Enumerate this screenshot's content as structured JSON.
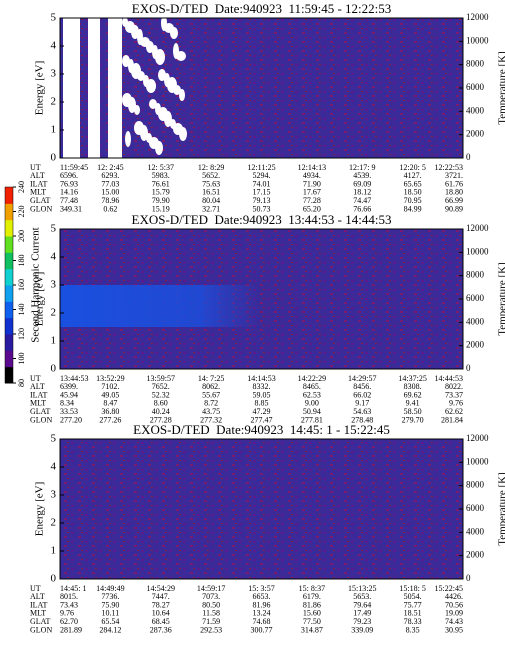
{
  "chart_data": [
    {
      "type": "spectrogram",
      "title": "EXOS-D/TED  Date:940923  11:59:45 - 12:22:53",
      "ylabel": "Energy [eV]",
      "y2label": "Temperature [K]",
      "ylim": [
        0,
        5
      ],
      "yticks": [
        0,
        1,
        2,
        3,
        4,
        5
      ],
      "y2lim": [
        0,
        12000
      ],
      "y2ticks": [
        0,
        2000,
        4000,
        6000,
        8000,
        10000,
        12000
      ],
      "table": [
        {
          "label": "UT",
          "values": [
            "11:59:45",
            "12: 2:45",
            "12: 5:37",
            "12: 8:29",
            "12:11:25",
            "12:14:13",
            "12:17: 9",
            "12:20: 5",
            "12:22:53"
          ]
        },
        {
          "label": "ALT",
          "values": [
            "6596.",
            "6293.",
            "5983.",
            "5652.",
            "5294.",
            "4934.",
            "4539.",
            "4127.",
            "3721."
          ]
        },
        {
          "label": "ILAT",
          "values": [
            "76.93",
            "77.03",
            "76.61",
            "75.63",
            "74.01",
            "71.90",
            "69.09",
            "65.65",
            "61.76"
          ]
        },
        {
          "label": "MLT",
          "values": [
            "14.16",
            "15.00",
            "15.79",
            "16.51",
            "17.15",
            "17.67",
            "18.12",
            "18.50",
            "18.80"
          ]
        },
        {
          "label": "GLAT",
          "values": [
            "77.48",
            "78.96",
            "79.90",
            "80.04",
            "79.13",
            "77.28",
            "74.47",
            "70.95",
            "66.99"
          ]
        },
        {
          "label": "GLON",
          "values": [
            "349.31",
            "0.62",
            "15.19",
            "32.71",
            "50.73",
            "65.20",
            "76.66",
            "84.99",
            "90.89"
          ]
        }
      ]
    },
    {
      "type": "spectrogram",
      "title": "EXOS-D/TED  Date:940923  13:44:53 - 14:44:53",
      "ylabel": "Energy [eV]",
      "y2label": "Temperature [K]",
      "ylim": [
        0,
        5
      ],
      "yticks": [
        0,
        1,
        2,
        3,
        4,
        5
      ],
      "y2lim": [
        0,
        12000
      ],
      "y2ticks": [
        0,
        2000,
        4000,
        6000,
        8000,
        10000,
        12000
      ],
      "colorbar": {
        "label": "Second Harmonic Current",
        "lim": [
          80,
          240
        ],
        "ticks": [
          80,
          100,
          120,
          140,
          160,
          180,
          200,
          220,
          240
        ],
        "colors": [
          "#000000",
          "#5a0a8c",
          "#2a1aa0",
          "#1030d0",
          "#1060f0",
          "#10a0f0",
          "#10d0d0",
          "#10c060",
          "#60e020",
          "#e0f000",
          "#f0a000",
          "#f02000"
        ]
      },
      "table": [
        {
          "label": "UT",
          "values": [
            "13:44:53",
            "13:52:29",
            "13:59:57",
            "14: 7:25",
            "14:14:53",
            "14:22:29",
            "14:29:57",
            "14:37:25",
            "14:44:53"
          ]
        },
        {
          "label": "ALT",
          "values": [
            "6399.",
            "7102.",
            "7652.",
            "8062.",
            "8332.",
            "8465.",
            "8456.",
            "8308.",
            "8022."
          ]
        },
        {
          "label": "ILAT",
          "values": [
            "45.94",
            "49.05",
            "52.32",
            "55.67",
            "59.05",
            "62.53",
            "66.02",
            "69.62",
            "73.37"
          ]
        },
        {
          "label": "MLT",
          "values": [
            "8.34",
            "8.47",
            "8.60",
            "8.72",
            "8.85",
            "9.00",
            "9.17",
            "9.41",
            "9.76"
          ]
        },
        {
          "label": "GLAT",
          "values": [
            "33.53",
            "36.80",
            "40.24",
            "43.75",
            "47.29",
            "50.94",
            "54.63",
            "58.50",
            "62.62"
          ]
        },
        {
          "label": "GLON",
          "values": [
            "277.20",
            "277.26",
            "277.28",
            "277.32",
            "277.47",
            "277.81",
            "278.48",
            "279.70",
            "281.84"
          ]
        }
      ]
    },
    {
      "type": "spectrogram",
      "title": "EXOS-D/TED  Date:940923  14:45: 1 - 15:22:45",
      "ylabel": "Energy [eV]",
      "y2label": "Temperature [K]",
      "ylim": [
        0,
        5
      ],
      "yticks": [
        0,
        1,
        2,
        3,
        4,
        5
      ],
      "y2lim": [
        0,
        12000
      ],
      "y2ticks": [
        0,
        2000,
        4000,
        6000,
        8000,
        10000,
        12000
      ],
      "table": [
        {
          "label": "UT",
          "values": [
            "14:45: 1",
            "14:49:49",
            "14:54:29",
            "14:59:17",
            "15: 3:57",
            "15: 8:37",
            "15:13:25",
            "15:18: 5",
            "15:22:45"
          ]
        },
        {
          "label": "ALT",
          "values": [
            "8015.",
            "7736.",
            "7447.",
            "7073.",
            "6653.",
            "6179.",
            "5653.",
            "5054.",
            "4426."
          ]
        },
        {
          "label": "ILAT",
          "values": [
            "73.43",
            "75.90",
            "78.27",
            "80.50",
            "81.96",
            "81.86",
            "79.64",
            "75.77",
            "70.56"
          ]
        },
        {
          "label": "MLT",
          "values": [
            "9.76",
            "10.11",
            "10.64",
            "11.58",
            "13.24",
            "15.60",
            "17.49",
            "18.51",
            "19.09"
          ]
        },
        {
          "label": "GLAT",
          "values": [
            "62.70",
            "65.54",
            "68.45",
            "71.59",
            "74.68",
            "77.50",
            "79.23",
            "78.33",
            "74.43"
          ]
        },
        {
          "label": "GLON",
          "values": [
            "281.89",
            "284.12",
            "287.36",
            "292.53",
            "300.77",
            "314.87",
            "339.09",
            "8.35",
            "30.95"
          ]
        }
      ]
    }
  ]
}
